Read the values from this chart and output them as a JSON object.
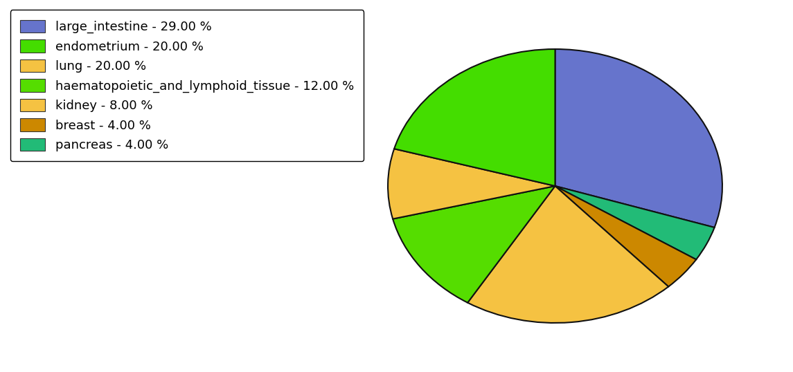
{
  "legend_labels": [
    "large_intestine - 29.00 %",
    "endometrium - 20.00 %",
    "lung - 20.00 %",
    "haematopoietic_and_lymphoid_tissue - 12.00 %",
    "kidney - 8.00 %",
    "breast - 4.00 %",
    "pancreas - 4.00 %"
  ],
  "values": [
    29,
    20,
    20,
    12,
    8,
    4,
    4
  ],
  "colors": [
    "#6674cc",
    "#44dd00",
    "#f5c242",
    "#55dd00",
    "#f5c242",
    "#cc8800",
    "#22bb77"
  ],
  "slice_order": [
    0,
    6,
    5,
    2,
    3,
    4,
    1
  ],
  "startangle": 90,
  "figsize": [
    11.45,
    5.38
  ],
  "dpi": 100,
  "legend_fontsize": 13,
  "edgecolor": "#111111",
  "linewidth": 1.5
}
